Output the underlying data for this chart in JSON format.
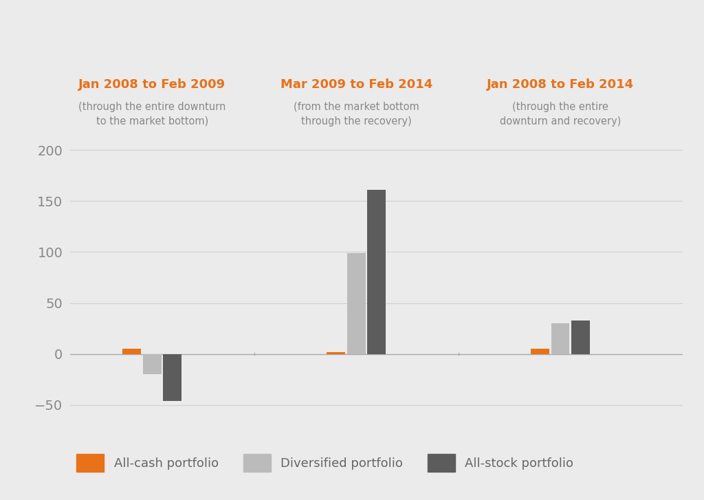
{
  "groups": [
    {
      "label": "Jan 2008 to Feb 2009",
      "sublabel": "(through the entire downturn\nto the market bottom)",
      "values": [
        5,
        -20,
        -46
      ]
    },
    {
      "label": "Mar 2009 to Feb 2014",
      "sublabel": "(from the market bottom\nthrough the recovery)",
      "values": [
        2,
        99,
        161
      ]
    },
    {
      "label": "Jan 2008 to Feb 2014",
      "sublabel": "(through the entire\ndownturn and recovery)",
      "values": [
        5,
        30,
        33
      ]
    }
  ],
  "series_names": [
    "All-cash portfolio",
    "Diversified portfolio",
    "All-stock portfolio"
  ],
  "colors": [
    "#E8711A",
    "#BBBBBB",
    "#5C5C5C"
  ],
  "background_color": "#EBEBEB",
  "ylim": [
    -60,
    210
  ],
  "yticks": [
    -50,
    0,
    50,
    100,
    150,
    200
  ],
  "bar_width": 0.18,
  "group_centers": [
    1.0,
    3.0,
    5.0
  ],
  "xlim": [
    0.2,
    6.2
  ]
}
